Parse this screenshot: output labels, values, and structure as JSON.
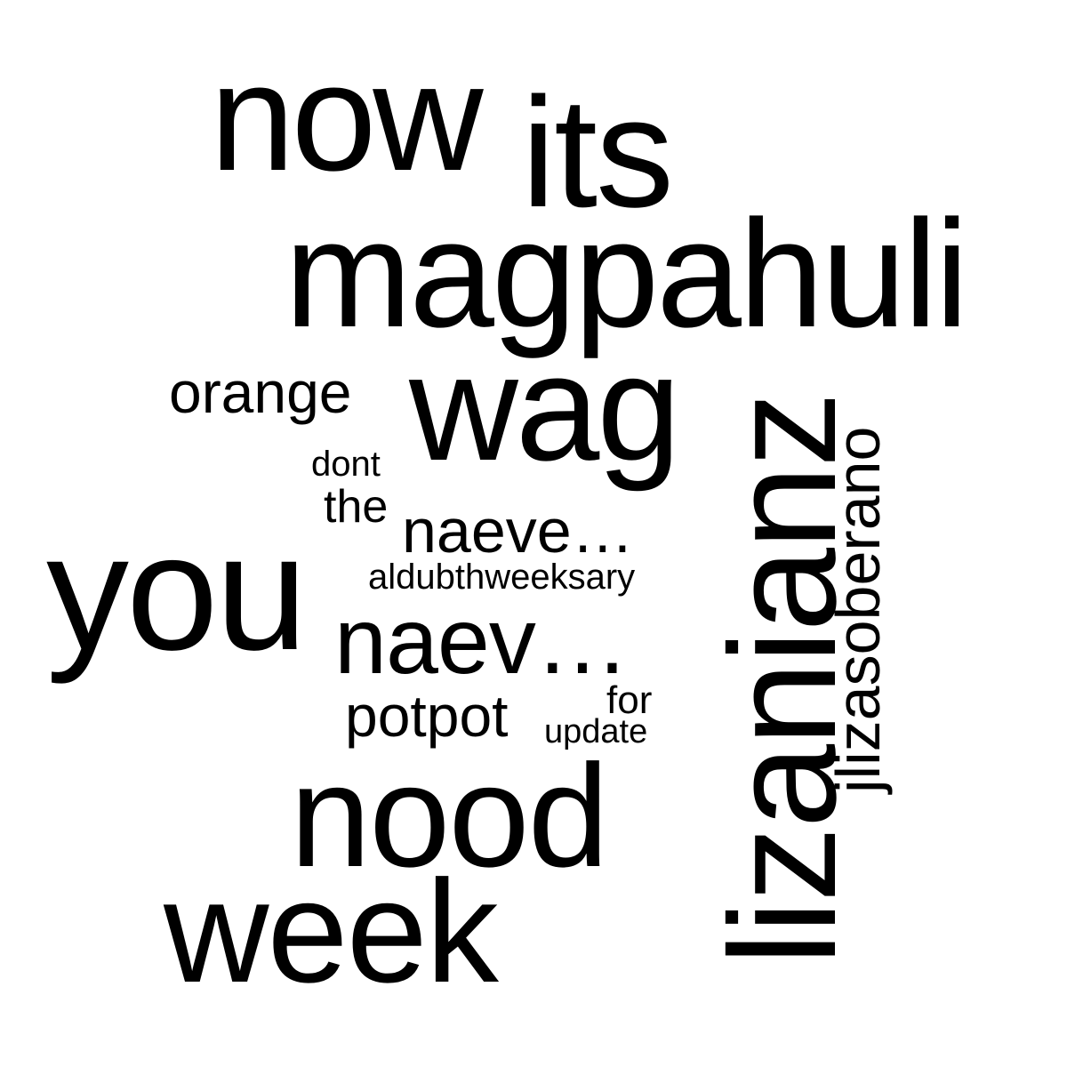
{
  "cloud": {
    "background": "#ffffff",
    "text_color": "#000000",
    "words": {
      "now": "now",
      "its": "its",
      "magpahuli": "magpahuli",
      "orange": "orange",
      "wag": "wag",
      "dont": "dont",
      "the": "the",
      "naeve": "naeve…",
      "aldubthweeksary": "aldubthweeksary",
      "you": "you",
      "naev": "naev…",
      "potpot": "potpot",
      "for": "for",
      "update": "update",
      "nood": "nood",
      "week": "week",
      "lizanianz": "lizanianz",
      "jlizasoberano": "jlizasoberano"
    }
  }
}
